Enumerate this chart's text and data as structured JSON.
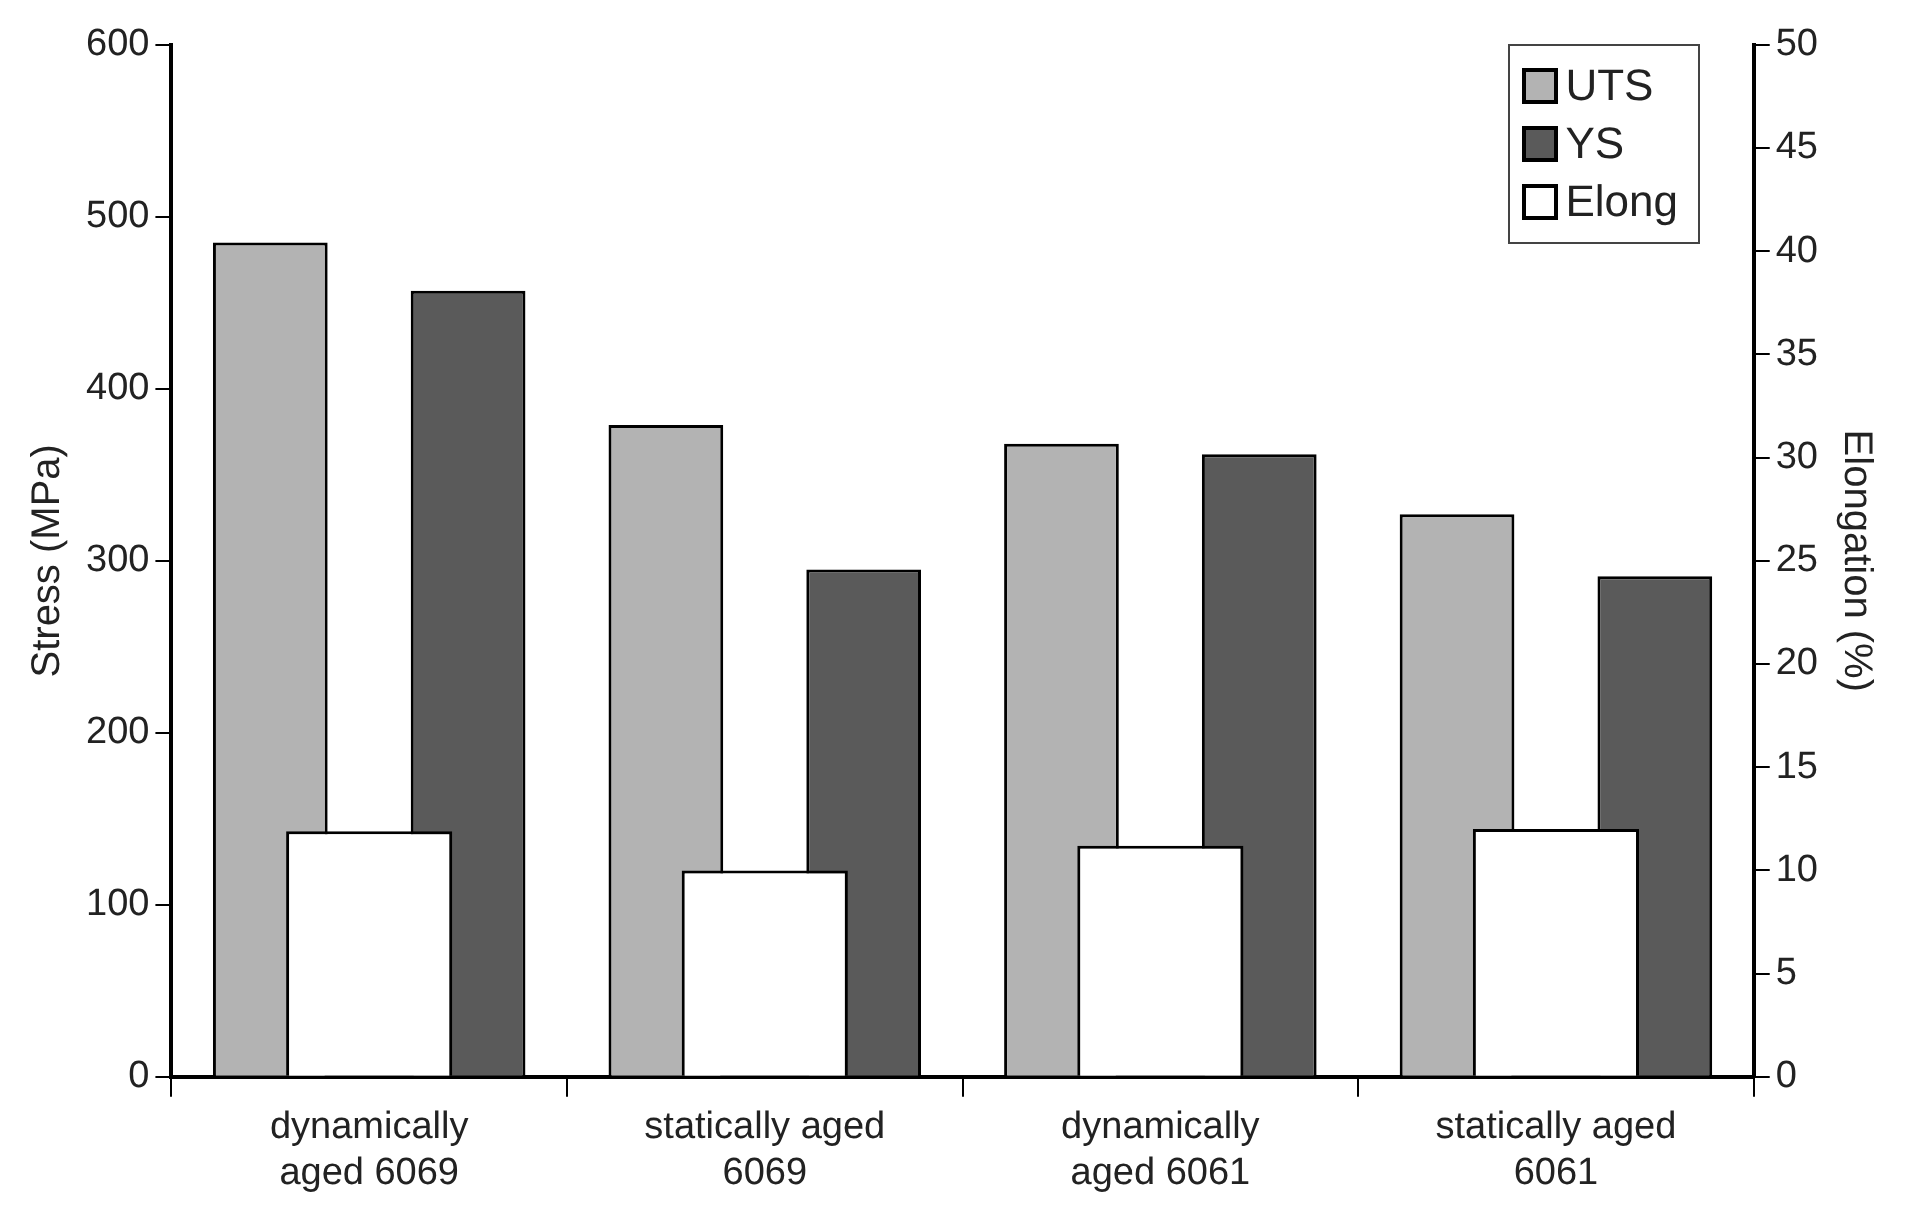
{
  "chart_data": {
    "type": "bar",
    "categories": [
      "dynamically\naged 6069",
      "statically aged\n6069",
      "dynamically\naged 6061",
      "statically aged\n6061"
    ],
    "series": [
      {
        "name": "UTS",
        "color": "#b3b3b3",
        "values": [
          485,
          379,
          368,
          327
        ]
      },
      {
        "name": "YS",
        "color": "#5a5a5a",
        "values": [
          457,
          295,
          362,
          291
        ]
      },
      {
        "name": "Elong",
        "color": "#ffffff",
        "axis": "y2",
        "values": [
          11.9,
          10.0,
          11.2,
          12.0
        ]
      }
    ],
    "ylabel": "Stress (MPa)",
    "y2label": "Elongation (%)",
    "ylim": [
      0,
      600
    ],
    "yticks": [
      0,
      100,
      200,
      300,
      400,
      500,
      600
    ],
    "y2lim": [
      0,
      50
    ],
    "y2ticks": [
      0,
      5,
      10,
      15,
      20,
      25,
      30,
      35,
      40,
      45,
      50
    ],
    "grid": false,
    "legend": "top right"
  }
}
